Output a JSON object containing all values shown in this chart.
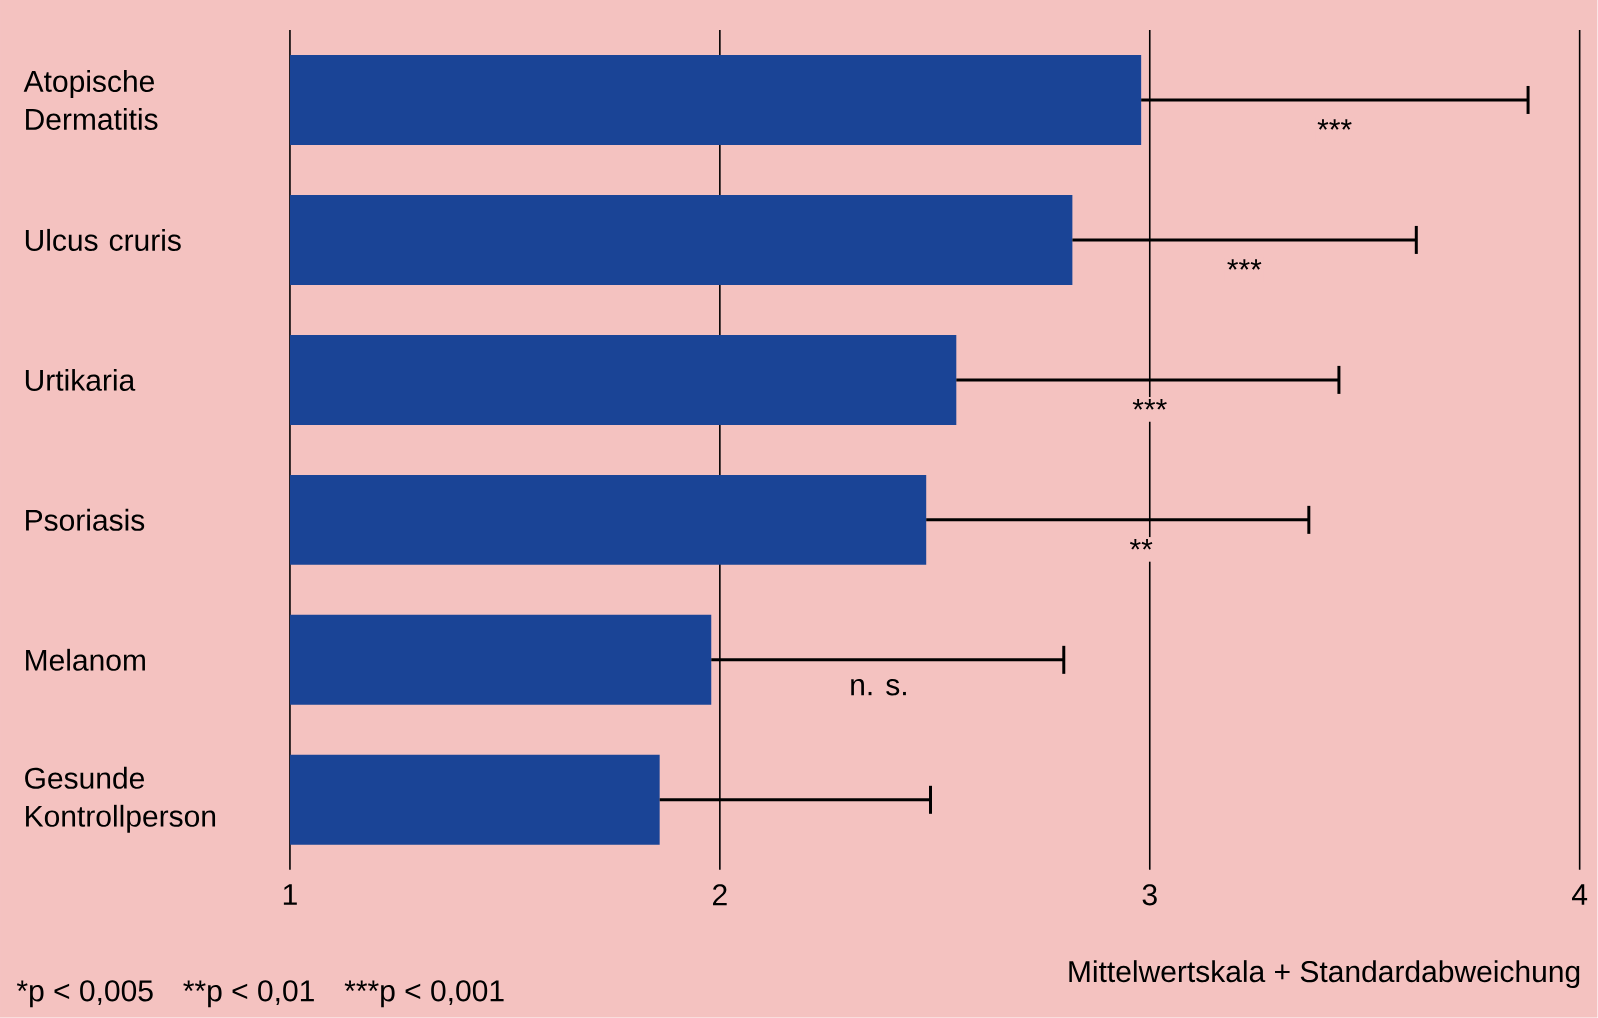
{
  "chart_data": {
    "type": "bar",
    "orientation": "horizontal",
    "categories": [
      "Atopische Dermatitis",
      "Ulcus cruris",
      "Urtikaria",
      "Psoriasis",
      "Melanom",
      "Gesunde Kontrollperson"
    ],
    "values": [
      2.98,
      2.82,
      2.55,
      2.48,
      1.98,
      1.86
    ],
    "errors": [
      [
        2.98,
        3.88
      ],
      [
        2.82,
        3.62
      ],
      [
        2.55,
        3.44
      ],
      [
        2.48,
        3.37
      ],
      [
        1.98,
        2.8
      ],
      [
        1.86,
        2.49
      ]
    ],
    "color": "#1a4496",
    "xlim": [
      1,
      4
    ],
    "xticks": [
      1,
      2,
      3,
      4
    ],
    "grid": "x",
    "xlabel": "Mittelwertskala + Standardabweichung",
    "annotations": [
      {
        "text": "***",
        "x": 3.43,
        "y": "Atopische Dermatitis"
      },
      {
        "text": "***",
        "x": 3.22,
        "y": "Ulcus cruris"
      },
      {
        "text": "***",
        "x": 3.0,
        "y": "Urtikaria"
      },
      {
        "text": "**",
        "x": 2.98,
        "y": "Psoriasis"
      },
      {
        "text": "n. s.",
        "x": 2.37,
        "y": "Melanom"
      },
      "*p < 0,005",
      "**p < 0,01",
      "***p < 0,001"
    ]
  }
}
